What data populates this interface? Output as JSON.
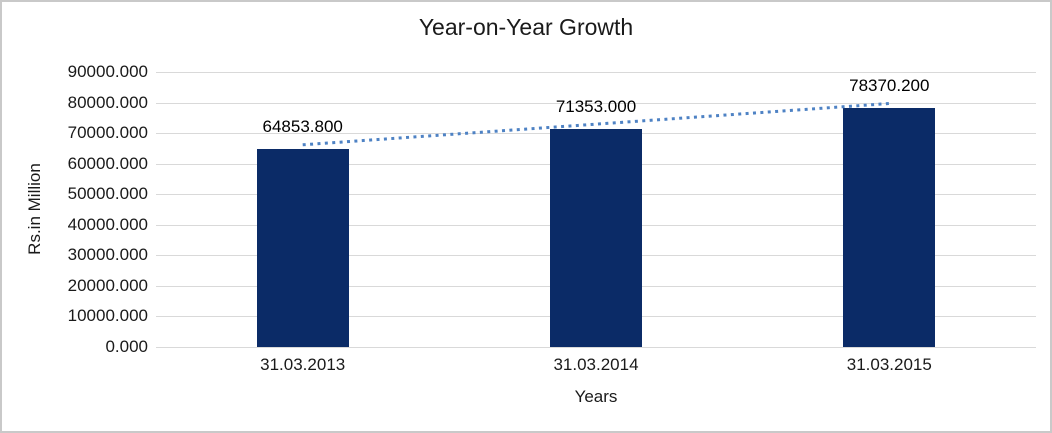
{
  "chart_data": {
    "type": "bar",
    "title": "Year-on-Year Growth",
    "xlabel": "Years",
    "ylabel": "Rs.in Million",
    "categories": [
      "31.03.2013",
      "31.03.2014",
      "31.03.2015"
    ],
    "series": [
      {
        "name": "Year-on-Year Growth",
        "values": [
          64853.8,
          71353.0,
          78370.2
        ],
        "value_labels": [
          "64853.800",
          "71353.000",
          "78370.200"
        ]
      }
    ],
    "ylim": [
      0,
      90000
    ],
    "ytick_step": 10000,
    "ytick_labels": [
      "0.000",
      "10000.000",
      "20000.000",
      "30000.000",
      "40000.000",
      "50000.000",
      "60000.000",
      "70000.000",
      "80000.000",
      "90000.000"
    ],
    "grid": true,
    "legend_position": "none",
    "trendline": {
      "type": "linear",
      "style": "dotted",
      "color": "#4e82c4"
    },
    "colors": {
      "bar": "#0b2b67",
      "gridline": "#d9d9d9",
      "text": "#1a1a1a",
      "background": "#ffffff",
      "frame_border": "#c9c9c9"
    }
  }
}
